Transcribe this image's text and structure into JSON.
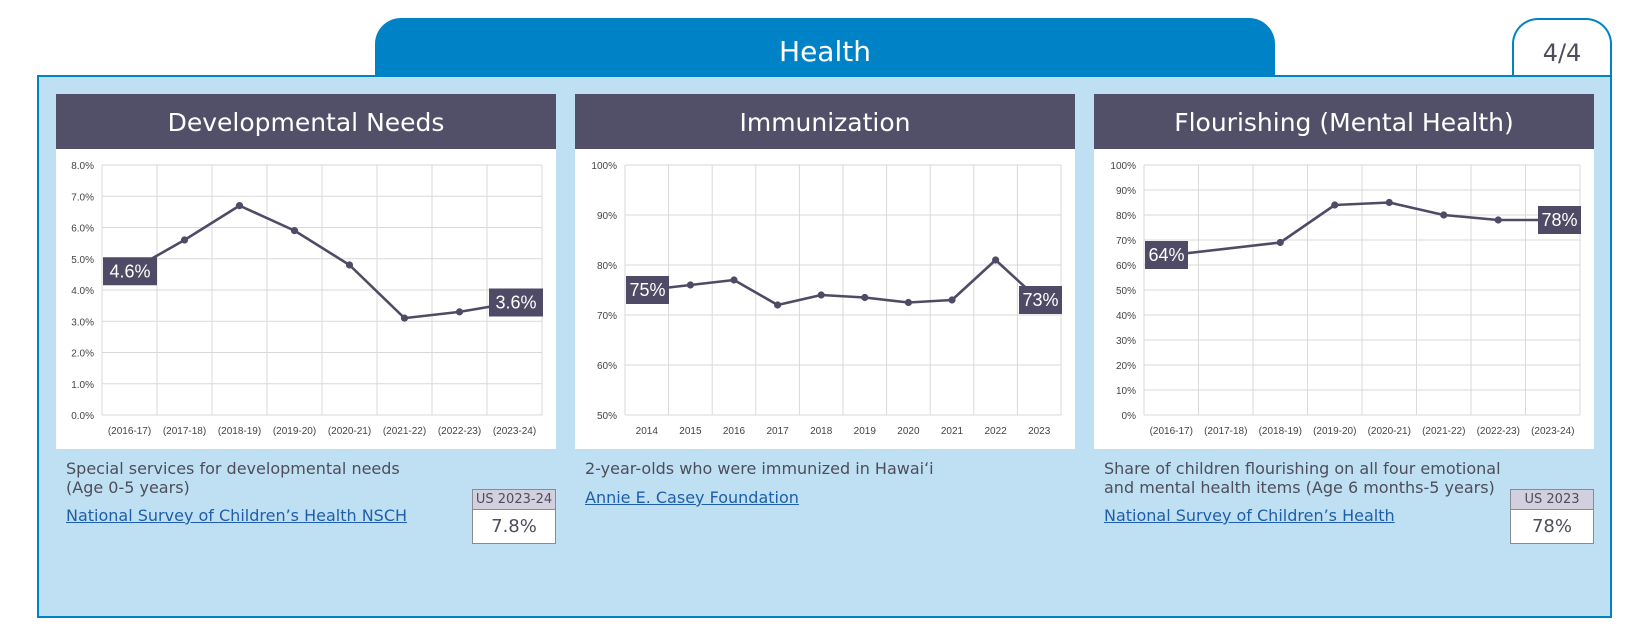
{
  "section_title": "Health",
  "page_indicator": "4/4",
  "colors": {
    "accent": "#0083c6",
    "panel_bg": "#bfe0f2",
    "header_bg": "#525069",
    "line": "#4f4b66",
    "link": "#1f5ea8"
  },
  "cards": [
    {
      "title": "Developmental Needs",
      "description_lines": [
        "Special services for developmental needs",
        "(Age 0-5 years)"
      ],
      "source": "National Survey of Children’s Health NSCH",
      "us_label": "US 2023-24",
      "us_value": "7.8%"
    },
    {
      "title": "Immunization",
      "description_lines": [
        "2-year-olds who were immunized in Hawaiʻi"
      ],
      "source": "Annie E. Casey Foundation"
    },
    {
      "title": "Flourishing (Mental Health)",
      "description_lines": [
        "Share of children flourishing on all four emotional",
        "and mental health items (Age 6 months-5 years)"
      ],
      "source": "National Survey of Children’s Health",
      "us_label": "US 2023",
      "us_value": "78%"
    }
  ],
  "chart_data": [
    {
      "type": "line",
      "categories": [
        "(2016-17)",
        "(2017-18)",
        "(2018-19)",
        "(2019-20)",
        "(2020-21)",
        "(2021-22)",
        "(2022-23)",
        "(2023-24)"
      ],
      "values": [
        4.6,
        5.6,
        6.7,
        5.9,
        4.8,
        3.1,
        3.3,
        3.6
      ],
      "ylim": [
        0,
        8
      ],
      "yticks": [
        "0.0%",
        "1.0%",
        "2.0%",
        "3.0%",
        "4.0%",
        "5.0%",
        "6.0%",
        "7.0%",
        "8.0%"
      ],
      "grid": true,
      "first_label": "4.6%",
      "last_label": "3.6%"
    },
    {
      "type": "line",
      "categories": [
        "2014",
        "2015",
        "2016",
        "2017",
        "2018",
        "2019",
        "2020",
        "2021",
        "2022",
        "2023"
      ],
      "values": [
        75,
        76,
        77,
        72,
        74,
        73.5,
        72.5,
        73,
        81,
        73
      ],
      "ylim": [
        50,
        100
      ],
      "yticks": [
        "50%",
        "60%",
        "70%",
        "80%",
        "90%",
        "100%"
      ],
      "grid": true,
      "first_label": "75%",
      "last_label": "73%"
    },
    {
      "type": "line",
      "categories": [
        "(2016-17)",
        "(2017-18)",
        "(2018-19)",
        "(2019-20)",
        "(2020-21)",
        "(2021-22)",
        "(2022-23)",
        "(2023-24)"
      ],
      "values": [
        64,
        null,
        69,
        84,
        85,
        80,
        78,
        78
      ],
      "ylim": [
        0,
        100
      ],
      "yticks": [
        "0%",
        "10%",
        "20%",
        "30%",
        "40%",
        "50%",
        "60%",
        "70%",
        "80%",
        "90%",
        "100%"
      ],
      "grid": true,
      "first_label": "64%",
      "last_label": "78%"
    }
  ]
}
